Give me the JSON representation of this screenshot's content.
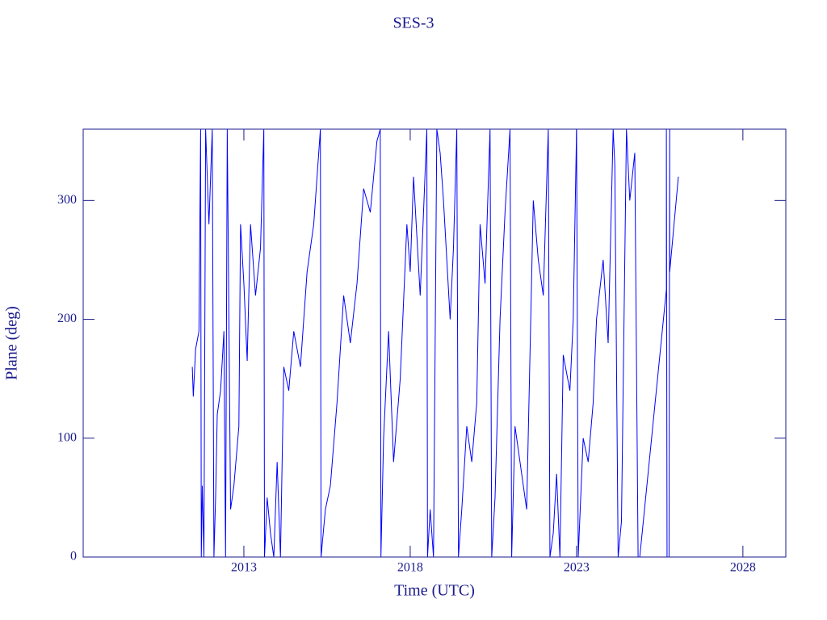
{
  "chart_data": {
    "type": "line",
    "title": "SES-3",
    "x_label": "Time (UTC)",
    "y_label": "Plane (deg)",
    "xlim": [
      2008.17,
      2029.29
    ],
    "ylim": [
      0,
      360
    ],
    "xticks": [
      2013,
      2018,
      2023,
      2028
    ],
    "yticks": [
      0,
      100,
      200,
      300
    ],
    "axis_color": "#1a1a8c",
    "series": [
      {
        "color": "#0000ff",
        "x": [
          2011.45,
          2011.48,
          2011.55,
          2011.65,
          2011.7,
          2011.72,
          2011.75,
          2011.8,
          2011.85,
          2011.95,
          2012.05,
          2012.1,
          2012.15,
          2012.2,
          2012.3,
          2012.4,
          2012.45,
          2012.5,
          2012.6,
          2012.7,
          2012.85,
          2012.9,
          2013.0,
          2013.1,
          2013.2,
          2013.35,
          2013.5,
          2013.6,
          2013.62,
          2013.7,
          2013.8,
          2013.9,
          2014.0,
          2014.1,
          2014.2,
          2014.35,
          2014.5,
          2014.7,
          2014.9,
          2015.1,
          2015.3,
          2015.32,
          2015.45,
          2015.6,
          2015.8,
          2016.0,
          2016.2,
          2016.4,
          2016.6,
          2016.8,
          2017.0,
          2017.1,
          2017.12,
          2017.2,
          2017.35,
          2017.5,
          2017.7,
          2017.9,
          2018.0,
          2018.1,
          2018.3,
          2018.5,
          2018.52,
          2018.6,
          2018.7,
          2018.8,
          2018.9,
          2019.0,
          2019.2,
          2019.3,
          2019.4,
          2019.45,
          2019.55,
          2019.7,
          2019.85,
          2020.0,
          2020.1,
          2020.25,
          2020.4,
          2020.45,
          2020.55,
          2020.7,
          2020.85,
          2021.0,
          2021.05,
          2021.15,
          2021.3,
          2021.5,
          2021.7,
          2021.85,
          2022.0,
          2022.15,
          2022.2,
          2022.3,
          2022.4,
          2022.5,
          2022.6,
          2022.8,
          2022.9,
          2023.0,
          2023.05,
          2023.2,
          2023.35,
          2023.5,
          2023.6,
          2023.8,
          2023.95,
          2024.1,
          2024.15,
          2024.25,
          2024.35,
          2024.5,
          2024.6,
          2024.75,
          2024.85,
          2024.9,
          2025.7,
          2025.7,
          2025.72,
          2025.78,
          2025.8,
          2025.8,
          2026.06
        ],
        "values": [
          160,
          135,
          175,
          190,
          360,
          0,
          60,
          0,
          360,
          280,
          360,
          0,
          50,
          120,
          140,
          190,
          0,
          360,
          40,
          60,
          110,
          280,
          230,
          165,
          280,
          220,
          260,
          360,
          0,
          50,
          20,
          0,
          80,
          0,
          160,
          140,
          190,
          160,
          240,
          280,
          360,
          0,
          40,
          60,
          130,
          220,
          180,
          230,
          310,
          290,
          350,
          360,
          0,
          100,
          190,
          80,
          150,
          280,
          240,
          320,
          220,
          360,
          0,
          40,
          0,
          360,
          340,
          300,
          200,
          260,
          360,
          0,
          40,
          110,
          80,
          130,
          280,
          230,
          360,
          0,
          50,
          200,
          290,
          360,
          0,
          110,
          80,
          40,
          300,
          250,
          220,
          360,
          0,
          20,
          70,
          0,
          170,
          140,
          200,
          360,
          0,
          100,
          80,
          130,
          200,
          250,
          180,
          360,
          330,
          0,
          30,
          360,
          300,
          340,
          0,
          0,
          225,
          360,
          0,
          0,
          360,
          240,
          320
        ]
      }
    ]
  }
}
